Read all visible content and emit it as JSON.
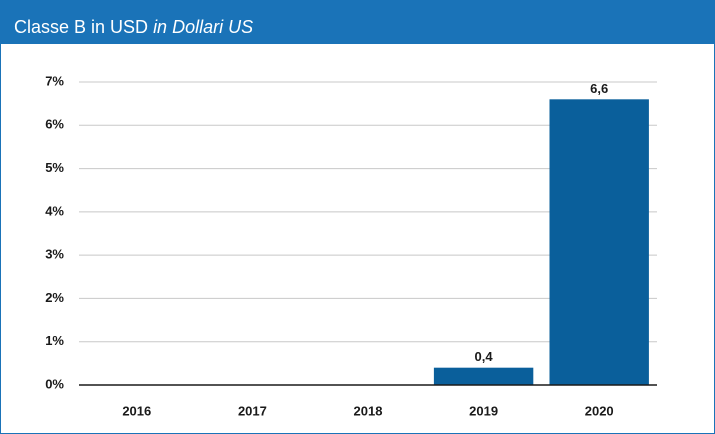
{
  "chart_data": {
    "type": "bar",
    "title": "Classe B in USD",
    "subtitle": "in Dollari US",
    "categories": [
      "2016",
      "2017",
      "2018",
      "2019",
      "2020"
    ],
    "values": [
      null,
      null,
      null,
      0.4,
      6.6
    ],
    "value_labels": [
      null,
      null,
      null,
      "0,4",
      "6,6"
    ],
    "color": "#0a5f9b",
    "ylim": [
      0,
      7
    ],
    "yticks": [
      {
        "value": 0,
        "label": "0%"
      },
      {
        "value": 1,
        "label": "1%"
      },
      {
        "value": 2,
        "label": "2%"
      },
      {
        "value": 3,
        "label": "3%"
      },
      {
        "value": 4,
        "label": "4%"
      },
      {
        "value": 5,
        "label": "5%"
      },
      {
        "value": 6,
        "label": "6%"
      },
      {
        "value": 7,
        "label": "7%"
      }
    ],
    "grid": true
  }
}
